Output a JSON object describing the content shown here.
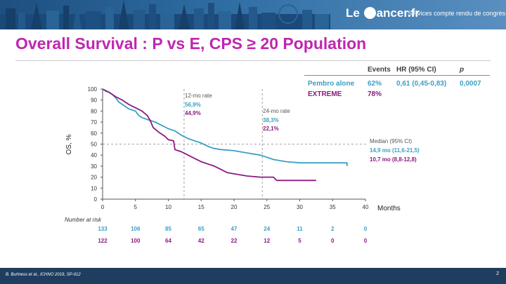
{
  "banner": {
    "logo_left": "Le",
    "logo_right": "ancer.fr",
    "tagline": "Services compte rendu de congrès"
  },
  "slide_title": "Overall Survival : P vs E, CPS ≥ 20 Population",
  "stats_table": {
    "headers": [
      "Events",
      "HR (95% CI)",
      "p"
    ],
    "rows": [
      {
        "arm": "Pembro alone",
        "events": "62%",
        "hr": "0,61 (0,45-0,83)",
        "p": "0,0007"
      },
      {
        "arm": "EXTREME",
        "events": "78%",
        "hr": "",
        "p": ""
      }
    ]
  },
  "annotations": {
    "m12": {
      "label": "12-mo rate",
      "pembro": "56,9%",
      "extreme": "44,9%"
    },
    "m24": {
      "label": "24-mo rate",
      "pembro": "38,3%",
      "extreme": "22,1%"
    },
    "median": {
      "label": "Median (95% CI)",
      "pembro": "14,9 mo (11,6-21,5)",
      "extreme": "10,7 mo (8,8-12,8)"
    }
  },
  "chart_data": {
    "type": "line",
    "ylabel": "OS, %",
    "xlabel": "Months",
    "xlim": [
      0,
      40
    ],
    "ylim": [
      0,
      100
    ],
    "xticks": [
      0,
      5,
      10,
      15,
      20,
      25,
      30,
      35,
      40
    ],
    "yticks": [
      0,
      10,
      20,
      30,
      40,
      50,
      60,
      70,
      80,
      90,
      100
    ],
    "reference_lines": {
      "vertical": [
        12.4,
        24.3
      ],
      "horizontal": [
        50
      ]
    },
    "series": [
      {
        "name": "Pembro alone",
        "color": "#3a9fc4",
        "x": [
          0,
          0.5,
          1,
          1.5,
          2,
          2.5,
          3,
          3.5,
          4,
          5,
          5.5,
          6,
          7,
          8,
          9,
          10,
          11,
          12,
          13,
          14,
          15,
          16,
          17,
          18,
          20,
          22,
          24,
          25,
          26,
          28,
          30,
          35,
          37.2,
          37.2
        ],
        "y": [
          100,
          98,
          97,
          95,
          92,
          88,
          86,
          84,
          82,
          80,
          76,
          74,
          72,
          70,
          67,
          64,
          62,
          58,
          55,
          53,
          51,
          48,
          46,
          45,
          44,
          42,
          40,
          38,
          36,
          34,
          33,
          33,
          33,
          30
        ]
      },
      {
        "name": "EXTREME",
        "color": "#8b1a80",
        "x": [
          0,
          1,
          2,
          3,
          4,
          5,
          6,
          6.8,
          7.2,
          7.7,
          8.5,
          9.5,
          10,
          10.8,
          11,
          12,
          13,
          14,
          15,
          16,
          17,
          18,
          19,
          20,
          22,
          24,
          25,
          26,
          26.5,
          28,
          30,
          32.5
        ],
        "y": [
          100,
          97,
          93,
          90,
          86,
          83,
          80,
          76,
          72,
          65,
          61,
          57,
          54,
          53,
          45,
          43,
          40,
          37,
          34,
          32,
          30,
          27,
          24,
          23,
          21,
          20,
          20,
          20,
          17,
          17,
          17,
          17
        ]
      }
    ]
  },
  "number_at_risk": {
    "title": "Number at risk",
    "rows": [
      {
        "arm": "Pembro alone",
        "values": [
          133,
          106,
          85,
          65,
          47,
          24,
          11,
          2,
          0
        ]
      },
      {
        "arm": "EXTREME",
        "values": [
          122,
          100,
          64,
          42,
          22,
          12,
          5,
          0,
          0
        ]
      }
    ]
  },
  "footer": {
    "reference": "B. Burtness et al., ICHNO 2019, SP-012",
    "page": "2"
  }
}
